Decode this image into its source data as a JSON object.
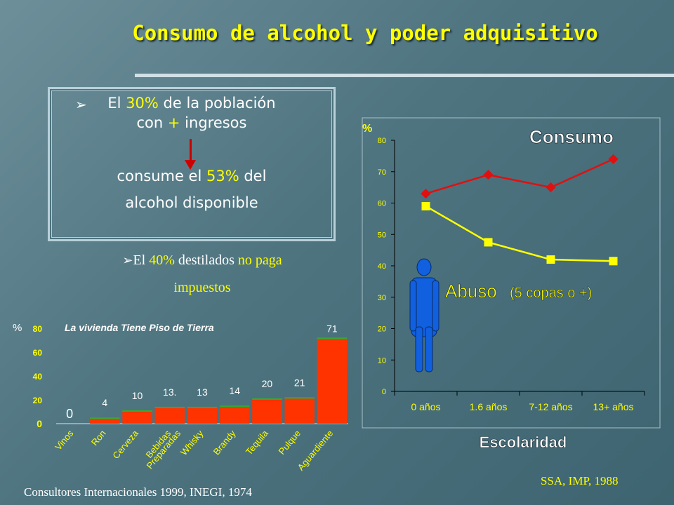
{
  "slide": {
    "title": "Consumo de alcohol y poder adquisitivo",
    "box": {
      "line1_pre": "El ",
      "line1_pct": "30%",
      "line1_post": " de la población",
      "line2_pre": "con ",
      "line2_plus": "+",
      "line2_post": " ingresos",
      "line3_pre": "consume el ",
      "line3_pct": "53%",
      "line3_post": " del",
      "line4": "alcohol disponible"
    },
    "bullet2": {
      "pre": "El ",
      "pct": "40%",
      "mid": " destilados ",
      "hl": "no paga",
      "line2": "impuestos"
    },
    "source_left": "Consultores Internacionales 1999, INEGI, 1974",
    "source_right": "SSA, IMP, 1988",
    "colors": {
      "accent_yellow": "#ffff00",
      "bar_red": "#ff3300",
      "consumo_red": "#e01010",
      "abuso_yellow": "#ffff00",
      "figure_blue": "#1060e0"
    }
  },
  "chart_data": [
    {
      "type": "bar",
      "title": "La vivienda Tiene Piso de Tierra",
      "ylabel": "%",
      "ylim": [
        0,
        80
      ],
      "yticks": [
        "0",
        "20",
        "40",
        "60",
        "80"
      ],
      "categories": [
        "Vinos",
        "Ron",
        "Cerveza",
        "Bebidas Preparadas",
        "Whisky",
        "Brandy",
        "Tequila",
        "Pulque",
        "Aguardiente"
      ],
      "values": [
        0,
        4,
        10,
        13,
        13,
        14,
        20,
        21,
        71
      ],
      "data_labels": [
        "0",
        "4",
        "10",
        "13.",
        "13",
        "14",
        "20",
        "21",
        "71"
      ],
      "label_colors": [
        "#ffff00",
        "#ffff00",
        "#ffff00",
        "#ffff00",
        "#ffff00",
        "#ffff00",
        "#ffff00",
        "#ffff00",
        "#ffff00"
      ]
    },
    {
      "type": "line",
      "ylabel": "%",
      "xlabel": "Escolaridad",
      "ylim": [
        0,
        80
      ],
      "yticks": [
        "0",
        "10",
        "20",
        "30",
        "40",
        "50",
        "60",
        "70",
        "80"
      ],
      "categories": [
        "0 años",
        "1.6 años",
        "7-12 años",
        "13+ años"
      ],
      "series": [
        {
          "name": "Consumo",
          "values": [
            63,
            69,
            65,
            74
          ]
        },
        {
          "name": "Abuso",
          "values": [
            59,
            47.5,
            42,
            41.5
          ]
        }
      ],
      "annotation": "(5 copas o +)"
    }
  ]
}
